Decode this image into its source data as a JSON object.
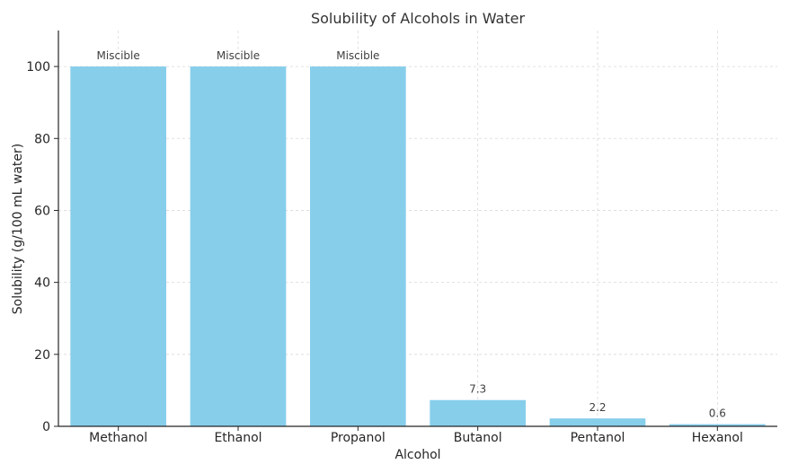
{
  "chart_data": {
    "type": "bar",
    "title": "Solubility of Alcohols in Water",
    "xlabel": "Alcohol",
    "ylabel": "Solubility (g/100 mL water)",
    "categories": [
      "Methanol",
      "Ethanol",
      "Propanol",
      "Butanol",
      "Pentanol",
      "Hexanol"
    ],
    "values": [
      100,
      100,
      100,
      7.3,
      2.2,
      0.6
    ],
    "data_labels": [
      "Miscible",
      "Miscible",
      "Miscible",
      "7.3",
      "2.2",
      "0.6"
    ],
    "ylim": [
      0,
      110
    ],
    "yticks": [
      0,
      20,
      40,
      60,
      80,
      100
    ],
    "grid": true,
    "colors": {
      "bar": "#87CEEB"
    }
  }
}
